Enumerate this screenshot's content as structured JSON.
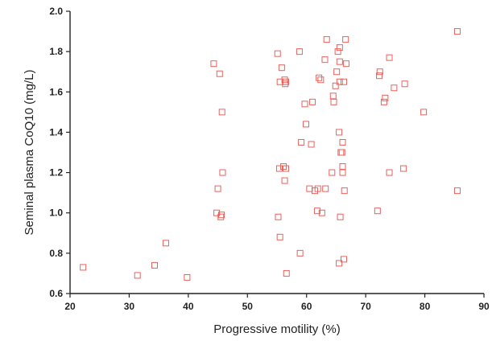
{
  "chart_data": {
    "type": "scatter",
    "xlabel": "Progressive motility (%)",
    "ylabel": "Seminal plasma CoQ10 (mg/L)",
    "xlim": [
      20,
      90
    ],
    "ylim": [
      0.6,
      2.0
    ],
    "xticks": [
      "20",
      "30",
      "40",
      "50",
      "60",
      "70",
      "80",
      "90"
    ],
    "yticks": [
      "0.6",
      "0.8",
      "1.0",
      "1.2",
      "1.4",
      "1.6",
      "1.8",
      "2.0"
    ],
    "marker": "open-square",
    "marker_color": "#e8625c",
    "grid": false,
    "points": [
      [
        22.2,
        0.73
      ],
      [
        31.4,
        0.69
      ],
      [
        34.3,
        0.74
      ],
      [
        36.2,
        0.85
      ],
      [
        39.8,
        0.68
      ],
      [
        44.3,
        1.74
      ],
      [
        44.8,
        1.0
      ],
      [
        45.0,
        1.12
      ],
      [
        45.3,
        1.69
      ],
      [
        45.5,
        0.98
      ],
      [
        45.6,
        0.99
      ],
      [
        45.7,
        1.5
      ],
      [
        45.8,
        1.2
      ],
      [
        55.1,
        1.79
      ],
      [
        55.2,
        0.98
      ],
      [
        55.4,
        1.22
      ],
      [
        55.5,
        0.88
      ],
      [
        55.5,
        1.65
      ],
      [
        55.8,
        1.72
      ],
      [
        56.1,
        1.23
      ],
      [
        56.3,
        1.16
      ],
      [
        56.3,
        1.66
      ],
      [
        56.4,
        1.64
      ],
      [
        56.5,
        1.22
      ],
      [
        56.5,
        1.65
      ],
      [
        56.6,
        0.7
      ],
      [
        58.8,
        1.8
      ],
      [
        58.9,
        0.8
      ],
      [
        59.1,
        1.35
      ],
      [
        59.7,
        1.54
      ],
      [
        59.9,
        1.44
      ],
      [
        60.5,
        1.12
      ],
      [
        60.8,
        1.34
      ],
      [
        61.0,
        1.55
      ],
      [
        61.4,
        1.11
      ],
      [
        61.8,
        1.01
      ],
      [
        61.9,
        1.12
      ],
      [
        62.1,
        1.67
      ],
      [
        62.4,
        1.66
      ],
      [
        62.6,
        1.0
      ],
      [
        63.1,
        1.76
      ],
      [
        63.2,
        1.12
      ],
      [
        63.4,
        1.86
      ],
      [
        64.3,
        1.2
      ],
      [
        64.5,
        1.58
      ],
      [
        64.6,
        1.55
      ],
      [
        64.9,
        1.63
      ],
      [
        65.1,
        1.7
      ],
      [
        65.3,
        1.8
      ],
      [
        65.5,
        1.4
      ],
      [
        65.5,
        0.75
      ],
      [
        65.6,
        1.82
      ],
      [
        65.6,
        1.65
      ],
      [
        65.6,
        1.75
      ],
      [
        65.7,
        0.98
      ],
      [
        65.8,
        1.3
      ],
      [
        66.0,
        1.3
      ],
      [
        66.1,
        1.2
      ],
      [
        66.1,
        1.23
      ],
      [
        66.1,
        1.35
      ],
      [
        66.3,
        0.77
      ],
      [
        66.3,
        1.65
      ],
      [
        66.4,
        1.11
      ],
      [
        66.6,
        1.86
      ],
      [
        66.7,
        1.74
      ],
      [
        72.0,
        1.01
      ],
      [
        72.3,
        1.68
      ],
      [
        72.4,
        1.7
      ],
      [
        73.1,
        1.55
      ],
      [
        73.3,
        1.57
      ],
      [
        74.0,
        1.2
      ],
      [
        74.0,
        1.77
      ],
      [
        74.8,
        1.62
      ],
      [
        76.4,
        1.22
      ],
      [
        76.6,
        1.64
      ],
      [
        79.8,
        1.5
      ],
      [
        85.5,
        1.9
      ],
      [
        85.5,
        1.11
      ]
    ]
  }
}
